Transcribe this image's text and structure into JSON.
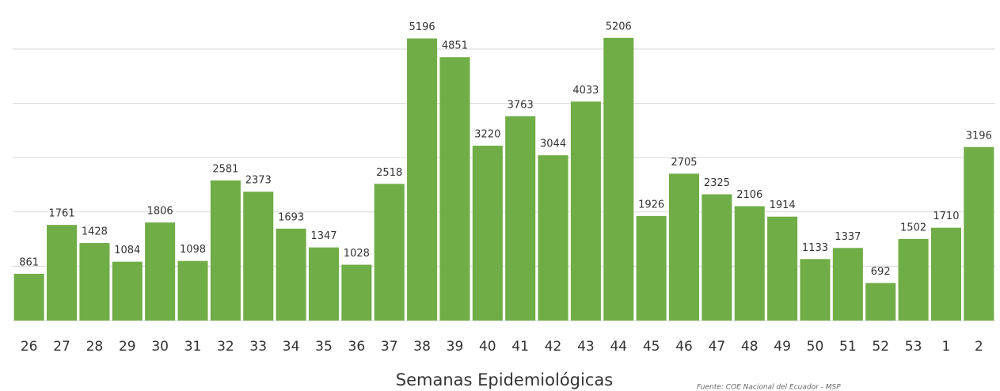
{
  "chart_data": {
    "type": "bar",
    "categories": [
      "26",
      "27",
      "28",
      "29",
      "30",
      "31",
      "32",
      "33",
      "34",
      "35",
      "36",
      "37",
      "38",
      "39",
      "40",
      "41",
      "42",
      "43",
      "44",
      "45",
      "46",
      "47",
      "48",
      "49",
      "50",
      "51",
      "52",
      "53",
      "1",
      "2"
    ],
    "values": [
      861,
      1761,
      1428,
      1084,
      1806,
      1098,
      2581,
      2373,
      1693,
      1347,
      1028,
      2518,
      5196,
      4851,
      3220,
      3763,
      3044,
      4033,
      5206,
      1926,
      2705,
      2325,
      2106,
      1914,
      1133,
      1337,
      692,
      1502,
      1710,
      3196
    ],
    "color": "#70ad47",
    "ylim": [
      0,
      5000
    ],
    "yticks": [
      0,
      1000,
      2000,
      3000,
      4000,
      5000
    ],
    "grid": true,
    "x_label": "Semanas Epidemiológicas",
    "source": "Fuente: COE Nacional del Ecuador - MSP"
  }
}
